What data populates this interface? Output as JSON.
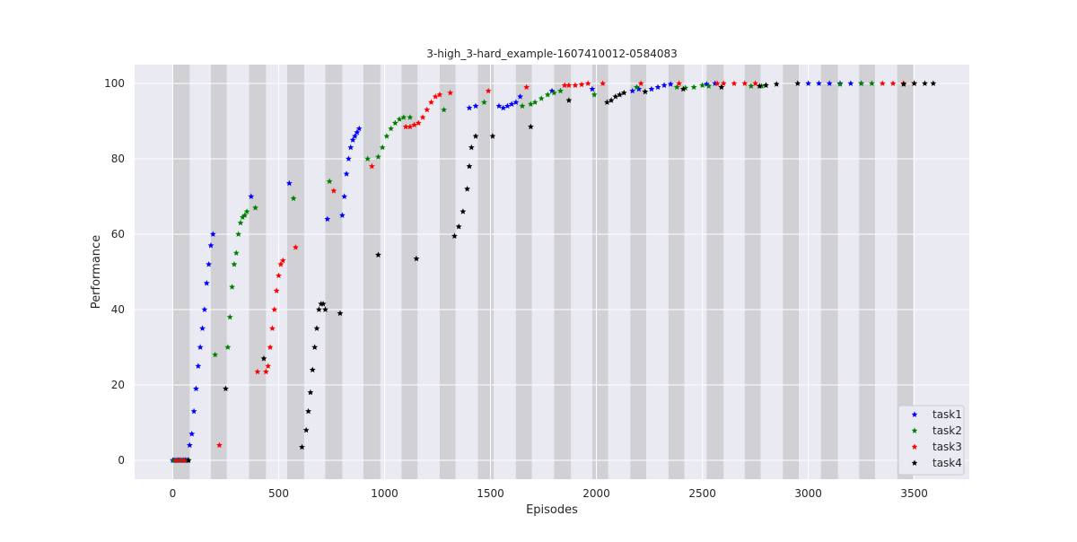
{
  "chart_data": {
    "type": "scatter",
    "title": "3-high_3-hard_example-1607410012-0584083",
    "xlabel": "Episodes",
    "ylabel": "Performance",
    "xlim": [
      -180,
      3760
    ],
    "ylim": [
      -5,
      105
    ],
    "xticks": [
      0,
      500,
      1000,
      1500,
      2000,
      2500,
      3000,
      3500
    ],
    "yticks": [
      0,
      20,
      40,
      60,
      80,
      100
    ],
    "grid": true,
    "legend_position": "bottom-right",
    "marker": "star",
    "shaded_intervals": [
      [
        0,
        80
      ],
      [
        180,
        255
      ],
      [
        360,
        440
      ],
      [
        540,
        620
      ],
      [
        720,
        800
      ],
      [
        900,
        980
      ],
      [
        1080,
        1155
      ],
      [
        1260,
        1335
      ],
      [
        1440,
        1515
      ],
      [
        1620,
        1695
      ],
      [
        1800,
        1880
      ],
      [
        1980,
        2055
      ],
      [
        2160,
        2235
      ],
      [
        2340,
        2415
      ],
      [
        2520,
        2600
      ],
      [
        2700,
        2775
      ],
      [
        2880,
        2955
      ],
      [
        3060,
        3140
      ],
      [
        3240,
        3315
      ],
      [
        3420,
        3495
      ]
    ],
    "series": [
      {
        "name": "task1",
        "color": "#0000ff",
        "points": [
          [
            0,
            0
          ],
          [
            10,
            0
          ],
          [
            20,
            0
          ],
          [
            30,
            0
          ],
          [
            40,
            0
          ],
          [
            50,
            0
          ],
          [
            60,
            0
          ],
          [
            70,
            0
          ],
          [
            80,
            4
          ],
          [
            90,
            7
          ],
          [
            100,
            13
          ],
          [
            110,
            19
          ],
          [
            120,
            25
          ],
          [
            130,
            30
          ],
          [
            140,
            35
          ],
          [
            150,
            40
          ],
          [
            160,
            47
          ],
          [
            170,
            52
          ],
          [
            180,
            57
          ],
          [
            190,
            60
          ],
          [
            370,
            70
          ],
          [
            550,
            73.5
          ],
          [
            730,
            64
          ],
          [
            800,
            65
          ],
          [
            810,
            70
          ],
          [
            820,
            76
          ],
          [
            830,
            80
          ],
          [
            840,
            83
          ],
          [
            850,
            85
          ],
          [
            860,
            86
          ],
          [
            870,
            87
          ],
          [
            880,
            88
          ],
          [
            1400,
            93.5
          ],
          [
            1430,
            94
          ],
          [
            1540,
            94
          ],
          [
            1560,
            93.5
          ],
          [
            1580,
            94
          ],
          [
            1600,
            94.5
          ],
          [
            1620,
            95
          ],
          [
            1640,
            96.5
          ],
          [
            1790,
            98
          ],
          [
            1980,
            98.5
          ],
          [
            2170,
            98
          ],
          [
            2200,
            98.5
          ],
          [
            2260,
            98.5
          ],
          [
            2290,
            99
          ],
          [
            2320,
            99.5
          ],
          [
            2350,
            99.8
          ],
          [
            2520,
            99.8
          ],
          [
            2560,
            100
          ],
          [
            3000,
            100
          ],
          [
            3050,
            100
          ],
          [
            3100,
            100
          ],
          [
            3150,
            100
          ],
          [
            3200,
            100
          ],
          [
            3250,
            100
          ]
        ]
      },
      {
        "name": "task2",
        "color": "#008000",
        "points": [
          [
            5,
            0
          ],
          [
            25,
            0
          ],
          [
            45,
            0
          ],
          [
            65,
            0
          ],
          [
            200,
            28
          ],
          [
            260,
            30
          ],
          [
            270,
            38
          ],
          [
            280,
            46
          ],
          [
            290,
            52
          ],
          [
            300,
            55
          ],
          [
            310,
            60
          ],
          [
            320,
            63
          ],
          [
            330,
            64.5
          ],
          [
            340,
            65
          ],
          [
            350,
            66
          ],
          [
            390,
            67
          ],
          [
            570,
            69.5
          ],
          [
            740,
            74
          ],
          [
            920,
            80
          ],
          [
            970,
            80.5
          ],
          [
            990,
            83
          ],
          [
            1010,
            86
          ],
          [
            1030,
            88
          ],
          [
            1050,
            89.5
          ],
          [
            1070,
            90.5
          ],
          [
            1090,
            91
          ],
          [
            1120,
            91
          ],
          [
            1280,
            93
          ],
          [
            1470,
            95
          ],
          [
            1650,
            94
          ],
          [
            1690,
            94.5
          ],
          [
            1710,
            95
          ],
          [
            1740,
            96
          ],
          [
            1770,
            97
          ],
          [
            1800,
            97.5
          ],
          [
            1830,
            98
          ],
          [
            1990,
            97
          ],
          [
            2190,
            99
          ],
          [
            2380,
            99
          ],
          [
            2420,
            98.8
          ],
          [
            2460,
            99
          ],
          [
            2500,
            99.5
          ],
          [
            2530,
            99.3
          ],
          [
            2730,
            99.3
          ],
          [
            2780,
            99.3
          ],
          [
            2800,
            99.5
          ],
          [
            3150,
            99.8
          ],
          [
            3250,
            100
          ],
          [
            3300,
            100
          ]
        ]
      },
      {
        "name": "task3",
        "color": "#ff0000",
        "points": [
          [
            15,
            0
          ],
          [
            35,
            0
          ],
          [
            55,
            0
          ],
          [
            220,
            4
          ],
          [
            400,
            23.5
          ],
          [
            440,
            23.5
          ],
          [
            450,
            25
          ],
          [
            460,
            30
          ],
          [
            470,
            35
          ],
          [
            480,
            40
          ],
          [
            490,
            45
          ],
          [
            500,
            49
          ],
          [
            510,
            52
          ],
          [
            520,
            53
          ],
          [
            580,
            56.5
          ],
          [
            760,
            71.5
          ],
          [
            940,
            78
          ],
          [
            1100,
            88.5
          ],
          [
            1120,
            88.5
          ],
          [
            1140,
            89
          ],
          [
            1160,
            89.5
          ],
          [
            1180,
            91
          ],
          [
            1200,
            93
          ],
          [
            1220,
            95
          ],
          [
            1240,
            96.5
          ],
          [
            1260,
            97
          ],
          [
            1310,
            97.5
          ],
          [
            1490,
            98
          ],
          [
            1670,
            99
          ],
          [
            1850,
            99.5
          ],
          [
            1870,
            99.5
          ],
          [
            1900,
            99.5
          ],
          [
            1930,
            99.7
          ],
          [
            1960,
            100
          ],
          [
            2030,
            100
          ],
          [
            2210,
            100
          ],
          [
            2390,
            100
          ],
          [
            2570,
            100
          ],
          [
            2600,
            100
          ],
          [
            2650,
            100
          ],
          [
            2700,
            100
          ],
          [
            2750,
            100
          ],
          [
            3350,
            100
          ],
          [
            3400,
            100
          ],
          [
            3450,
            100
          ],
          [
            3500,
            100
          ]
        ]
      },
      {
        "name": "task4",
        "color": "#000000",
        "points": [
          [
            75,
            0
          ],
          [
            250,
            19
          ],
          [
            430,
            27
          ],
          [
            610,
            3.5
          ],
          [
            630,
            8
          ],
          [
            640,
            13
          ],
          [
            650,
            18
          ],
          [
            660,
            24
          ],
          [
            670,
            30
          ],
          [
            680,
            35
          ],
          [
            690,
            40
          ],
          [
            700,
            41.5
          ],
          [
            710,
            41.5
          ],
          [
            720,
            40
          ],
          [
            790,
            39
          ],
          [
            970,
            54.5
          ],
          [
            1150,
            53.5
          ],
          [
            1330,
            59.5
          ],
          [
            1350,
            62
          ],
          [
            1370,
            66
          ],
          [
            1390,
            72
          ],
          [
            1400,
            78
          ],
          [
            1410,
            83
          ],
          [
            1430,
            86
          ],
          [
            1510,
            86
          ],
          [
            1690,
            88.5
          ],
          [
            1870,
            95.5
          ],
          [
            2050,
            95
          ],
          [
            2070,
            95.5
          ],
          [
            2090,
            96.5
          ],
          [
            2110,
            97
          ],
          [
            2130,
            97.5
          ],
          [
            2230,
            97.8
          ],
          [
            2410,
            98.5
          ],
          [
            2590,
            99
          ],
          [
            2770,
            99.3
          ],
          [
            2800,
            99.5
          ],
          [
            2850,
            99.8
          ],
          [
            2950,
            100
          ],
          [
            3450,
            99.8
          ],
          [
            3500,
            100
          ],
          [
            3550,
            100
          ],
          [
            3590,
            100
          ]
        ]
      }
    ]
  }
}
